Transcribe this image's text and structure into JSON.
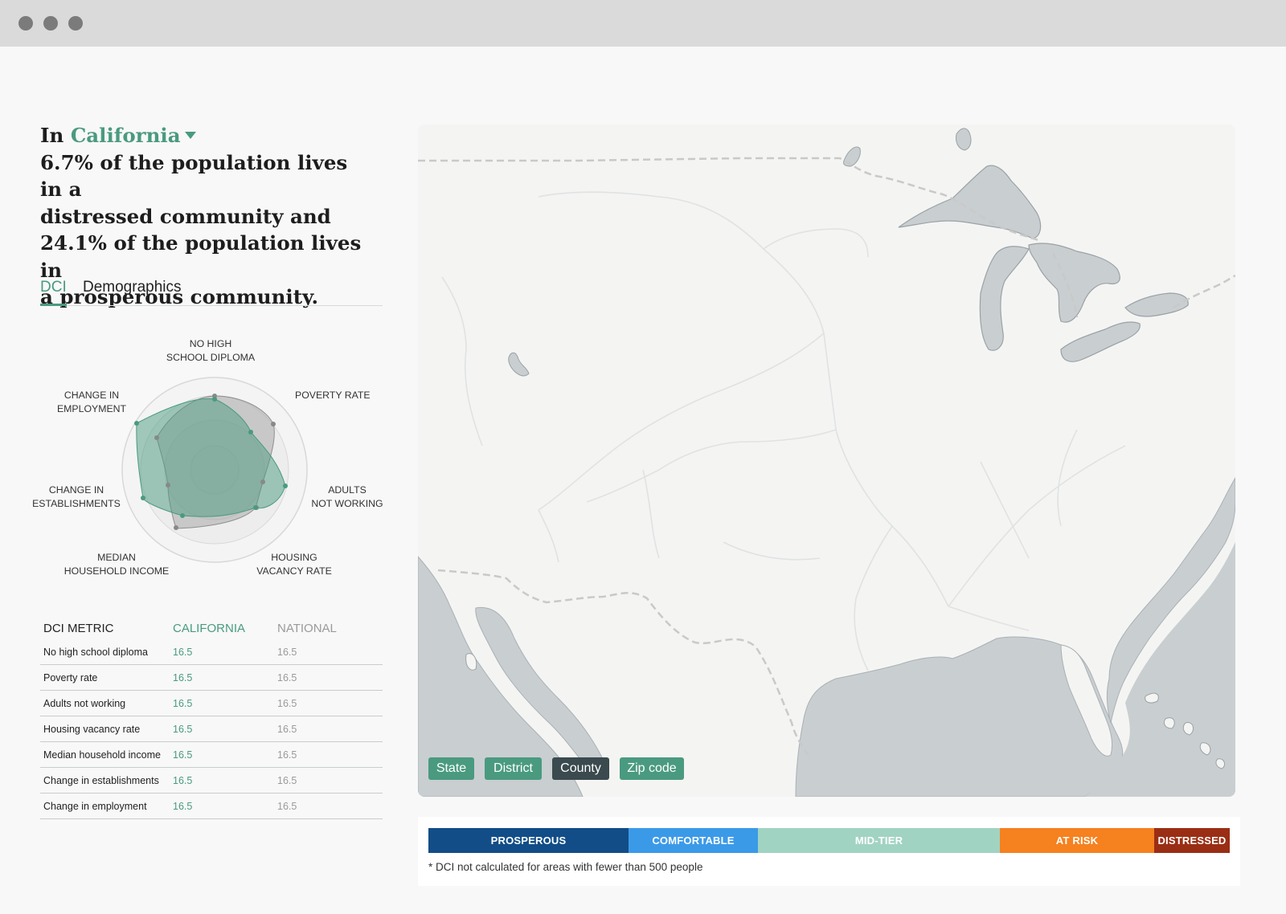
{
  "window": {
    "controls": [
      "close-dot",
      "minimize-dot",
      "maximize-dot"
    ]
  },
  "headline": {
    "prefix": "In",
    "state": "California",
    "line1": "6.7% of the population lives in a",
    "line2": "distressed community and",
    "line3": "24.1% of the population lives in",
    "line4": "a prosperous community."
  },
  "tabs": [
    {
      "label": "DCI",
      "active": true
    },
    {
      "label": "Demographics",
      "active": false
    }
  ],
  "radar": {
    "labels": {
      "no_high_school_1": "NO HIGH",
      "no_high_school_2": "SCHOOL DIPLOMA",
      "poverty": "POVERTY RATE",
      "adults_1": "ADULTS",
      "adults_2": "NOT WORKING",
      "housing_1": "HOUSING",
      "housing_2": "VACANCY RATE",
      "income_1": "MEDIAN",
      "income_2": "HOUSEHOLD INCOME",
      "establishments_1": "CHANGE IN",
      "establishments_2": "ESTABLISHMENTS",
      "employment_1": "CHANGE IN",
      "employment_2": "EMPLOYMENT"
    },
    "california_color": "#4a9a80",
    "national_color": "#a9a9a9"
  },
  "table": {
    "headers": {
      "metric": "DCI METRIC",
      "state": "CALIFORNIA",
      "national": "NATIONAL"
    },
    "rows": [
      {
        "metric": "No high school diploma",
        "state": "16.5",
        "national": "16.5"
      },
      {
        "metric": "Poverty rate",
        "state": "16.5",
        "national": "16.5"
      },
      {
        "metric": "Adults not working",
        "state": "16.5",
        "national": "16.5"
      },
      {
        "metric": "Housing vacancy rate",
        "state": "16.5",
        "national": "16.5"
      },
      {
        "metric": "Median household income",
        "state": "16.5",
        "national": "16.5"
      },
      {
        "metric": "Change in establishments",
        "state": "16.5",
        "national": "16.5"
      },
      {
        "metric": "Change in employment",
        "state": "16.5",
        "national": "16.5"
      }
    ]
  },
  "map": {
    "geo_buttons": [
      {
        "label": "State",
        "selected": false
      },
      {
        "label": "District",
        "selected": false
      },
      {
        "label": "County",
        "selected": true
      },
      {
        "label": "Zip code",
        "selected": false
      }
    ],
    "colors": {
      "land": "#f4f4f3",
      "water": "#c9ced1",
      "button": "#4a9a80",
      "button_selected": "#3a4a4f"
    }
  },
  "legend": {
    "segments": [
      {
        "label": "PROSPEROUS",
        "color": "#124d87"
      },
      {
        "label": "COMFORTABLE",
        "color": "#3b9ae8"
      },
      {
        "label": "MID-TIER",
        "color": "#a1d3c2"
      },
      {
        "label": "AT RISK",
        "color": "#f6811f"
      },
      {
        "label": "DISTRESSED",
        "color": "#9a2e14"
      }
    ],
    "note": "* DCI not calculated for areas with fewer than 500 people"
  }
}
